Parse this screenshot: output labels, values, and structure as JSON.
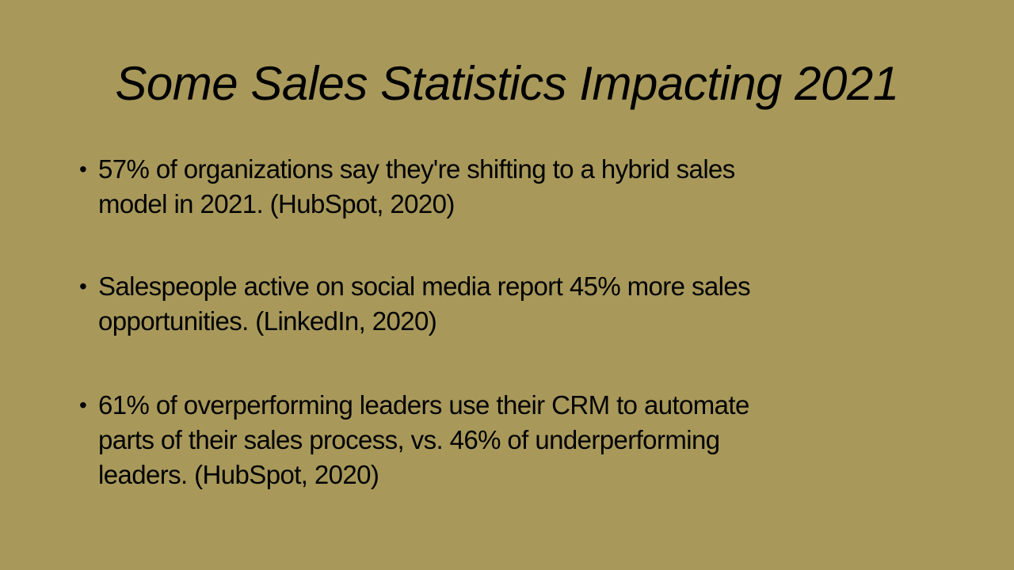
{
  "slide": {
    "title": "Some Sales Statistics Impacting 2021",
    "background_color": "#a8995b",
    "bullets": [
      {
        "lines": [
          "57% of organizations say they're shifting to a hybrid sales",
          "model in 2021. (HubSpot, 2020)"
        ]
      },
      {
        "lines": [
          "Salespeople active on social media report 45% more sales",
          "opportunities. (LinkedIn, 2020)"
        ]
      },
      {
        "lines": [
          "61% of overperforming leaders use their CRM to automate",
          "parts of their sales process, vs. 46% of underperforming",
          "leaders. (HubSpot, 2020)"
        ]
      }
    ],
    "bullet_glyph": "•"
  }
}
